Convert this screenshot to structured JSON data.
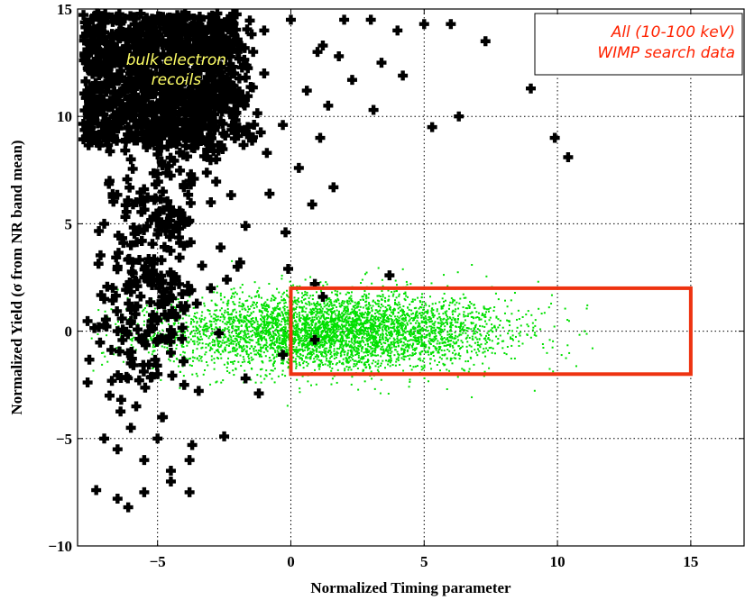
{
  "chart_data": {
    "type": "scatter",
    "title": "",
    "xlabel": "Normalized Timing parameter",
    "ylabel": "Normalized Yield (σ from NR band mean)",
    "xlim": [
      -8,
      17
    ],
    "ylim": [
      -10,
      15
    ],
    "xticks": [
      -5,
      0,
      5,
      10,
      15
    ],
    "yticks": [
      -10,
      -5,
      0,
      5,
      10,
      15
    ],
    "xtick_labels": [
      "−5",
      "0",
      "5",
      "10",
      "15"
    ],
    "ytick_labels": [
      "−10",
      "−5",
      "0",
      "5",
      "10",
      "15"
    ],
    "grid": true,
    "legend": [
      "All (10-100 keV)",
      "WIMP search data"
    ],
    "legend_color": "#ff2200",
    "annotation": [
      "bulk electron",
      "recoils"
    ],
    "annotation_color": "#ffff66",
    "series": [
      {
        "marker": "dot",
        "color": "#00e000",
        "distribution": {
          "x_mean": 1.5,
          "x_sd": 3.2,
          "y_mean": 0.0,
          "y_sd": 0.9,
          "n": 4500,
          "x_min": -7.5,
          "x_max": 17
        }
      },
      {
        "marker": "plus",
        "color": "#000000",
        "points": [
          [
            -6.5,
            13
          ],
          [
            -5.5,
            12
          ],
          [
            -4.5,
            14
          ],
          [
            -3.5,
            13
          ],
          [
            -6,
            10
          ],
          [
            -5,
            10.5
          ],
          [
            -4,
            11
          ],
          [
            -3,
            12
          ],
          [
            -2,
            13
          ],
          [
            -1,
            14
          ],
          [
            0,
            14.5
          ],
          [
            1,
            13
          ],
          [
            -7,
            9
          ],
          [
            -6,
            8
          ],
          [
            -5,
            8.5
          ],
          [
            -4,
            9
          ],
          [
            -3,
            10
          ],
          [
            -2,
            11
          ],
          [
            -1,
            12
          ],
          [
            -6.8,
            7
          ],
          [
            -5.8,
            6
          ],
          [
            -4.8,
            6.5
          ],
          [
            -3.8,
            7
          ],
          [
            -2.8,
            8
          ],
          [
            -7,
            5
          ],
          [
            -6,
            4
          ],
          [
            -5,
            4.5
          ],
          [
            -4,
            5
          ],
          [
            -3,
            6
          ],
          [
            -6.5,
            3
          ],
          [
            -5.5,
            2.5
          ],
          [
            -4.5,
            2
          ],
          [
            -7,
            1.5
          ],
          [
            -6,
            1
          ],
          [
            -5,
            0.5
          ],
          [
            -4,
            1
          ],
          [
            -3,
            2
          ],
          [
            -2,
            3
          ],
          [
            -6.5,
            0
          ],
          [
            -5.5,
            -0.5
          ],
          [
            -4.5,
            -1
          ],
          [
            -6,
            -1.5
          ],
          [
            -5,
            -2
          ],
          [
            -4,
            -2.5
          ],
          [
            -6.8,
            -3
          ],
          [
            -5.8,
            -3.5
          ],
          [
            -4.8,
            -4
          ],
          [
            -6,
            -4.5
          ],
          [
            -5,
            -5
          ],
          [
            -7,
            -5
          ],
          [
            -6.5,
            -5.5
          ],
          [
            -5.5,
            -6
          ],
          [
            -4.5,
            -6.5
          ],
          [
            -3.8,
            -6
          ],
          [
            -3.8,
            -7.5
          ],
          [
            -4.5,
            -7
          ],
          [
            -5.5,
            -7.5
          ],
          [
            -6.5,
            -7.8
          ],
          [
            -7.3,
            -7.4
          ],
          [
            -6.1,
            -8.2
          ],
          [
            -2.5,
            -4.9
          ],
          [
            -3.7,
            -5.3
          ],
          [
            2,
            14.5
          ],
          [
            3,
            14.5
          ],
          [
            4,
            14
          ],
          [
            5,
            14.3
          ],
          [
            6,
            14.3
          ],
          [
            7.3,
            13.5
          ],
          [
            1.2,
            13.3
          ],
          [
            1.8,
            12.8
          ],
          [
            3.4,
            12.5
          ],
          [
            4.2,
            11.9
          ],
          [
            2.3,
            11.7
          ],
          [
            0.6,
            11.2
          ],
          [
            1.4,
            10.5
          ],
          [
            3.1,
            10.3
          ],
          [
            5.3,
            9.5
          ],
          [
            6.3,
            10
          ],
          [
            9.0,
            11.3
          ],
          [
            9.9,
            9
          ],
          [
            10.4,
            8.1
          ],
          [
            1.1,
            9.0
          ],
          [
            -0.3,
            9.6
          ],
          [
            -0.9,
            8.3
          ],
          [
            0.3,
            7.6
          ],
          [
            1.6,
            6.7
          ],
          [
            0.8,
            5.9
          ],
          [
            -0.8,
            6.4
          ],
          [
            -1.7,
            4.9
          ],
          [
            -1.9,
            3.2
          ],
          [
            -2.4,
            2.4
          ],
          [
            -2.7,
            -0.1
          ],
          [
            -1.7,
            -2.2
          ],
          [
            -1.2,
            -2.9
          ],
          [
            -0.2,
            4.6
          ],
          [
            0.9,
            2.2
          ],
          [
            -0.1,
            2.9
          ],
          [
            0.9,
            -0.4
          ],
          [
            1.2,
            1.6
          ],
          [
            3.7,
            2.6
          ],
          [
            -0.3,
            -1.1
          ]
        ]
      }
    ],
    "box": {
      "x": [
        0,
        15
      ],
      "y": [
        -2,
        2
      ],
      "color": "#ee3311"
    }
  }
}
